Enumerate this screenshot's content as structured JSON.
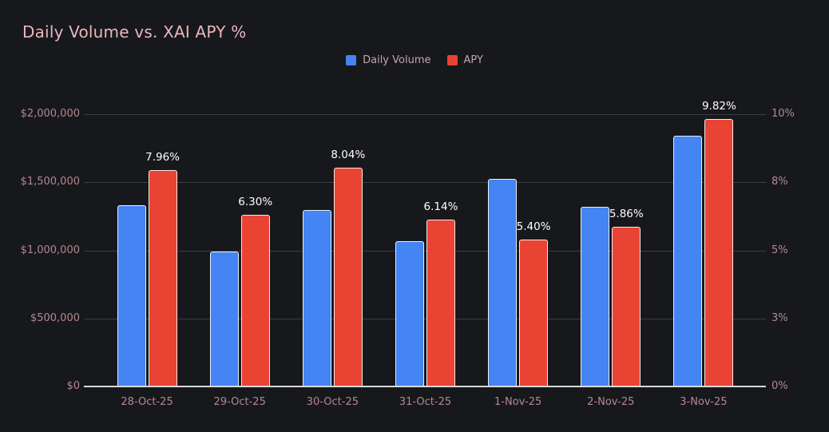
{
  "title": "Daily Volume vs. XAI APY %",
  "colors": {
    "background": "#17181c",
    "title": "#e9b7bb",
    "axis_label": "#b4888d",
    "legend_label": "#c7a3a8",
    "gridline": "#3c3d42",
    "axis_line": "#d9d9d9",
    "data_label": "#ffffff",
    "volume_bar": "#4484f3",
    "apy_bar": "#e94334"
  },
  "legend": {
    "items": [
      {
        "label": "Daily Volume",
        "color": "#4484f3"
      },
      {
        "label": "APY",
        "color": "#e94334"
      }
    ]
  },
  "chart_data": {
    "type": "bar",
    "title": "Daily Volume vs. XAI APY %",
    "categories": [
      "28-Oct-25",
      "29-Oct-25",
      "30-Oct-25",
      "31-Oct-25",
      "1-Nov-25",
      "2-Nov-25",
      "3-Nov-25"
    ],
    "series": [
      {
        "name": "Daily Volume",
        "axis": "left",
        "color": "#4484f3",
        "values": [
          1330000,
          990000,
          1295000,
          1065000,
          1525000,
          1320000,
          1840000
        ]
      },
      {
        "name": "APY",
        "axis": "right",
        "color": "#e94334",
        "values": [
          7.96,
          6.3,
          8.04,
          6.14,
          5.4,
          5.86,
          9.82
        ],
        "data_labels": [
          "7.96%",
          "6.30%",
          "8.04%",
          "6.14%",
          "5.40%",
          "5.86%",
          "9.82%"
        ]
      }
    ],
    "left_axis": {
      "min": 0,
      "max": 2000000,
      "tick_values": [
        0,
        500000,
        1000000,
        1500000,
        2000000
      ],
      "tick_labels": [
        "$0",
        "$500,000",
        "$1,000,000",
        "$1,500,000",
        "$2,000,000"
      ]
    },
    "right_axis": {
      "min": 0,
      "max": 10,
      "tick_values": [
        0,
        2.5,
        5,
        7.5,
        10
      ],
      "tick_labels": [
        "0%",
        "3%",
        "5%",
        "8%",
        "10%"
      ]
    },
    "grid": true,
    "legend_position": "top"
  }
}
